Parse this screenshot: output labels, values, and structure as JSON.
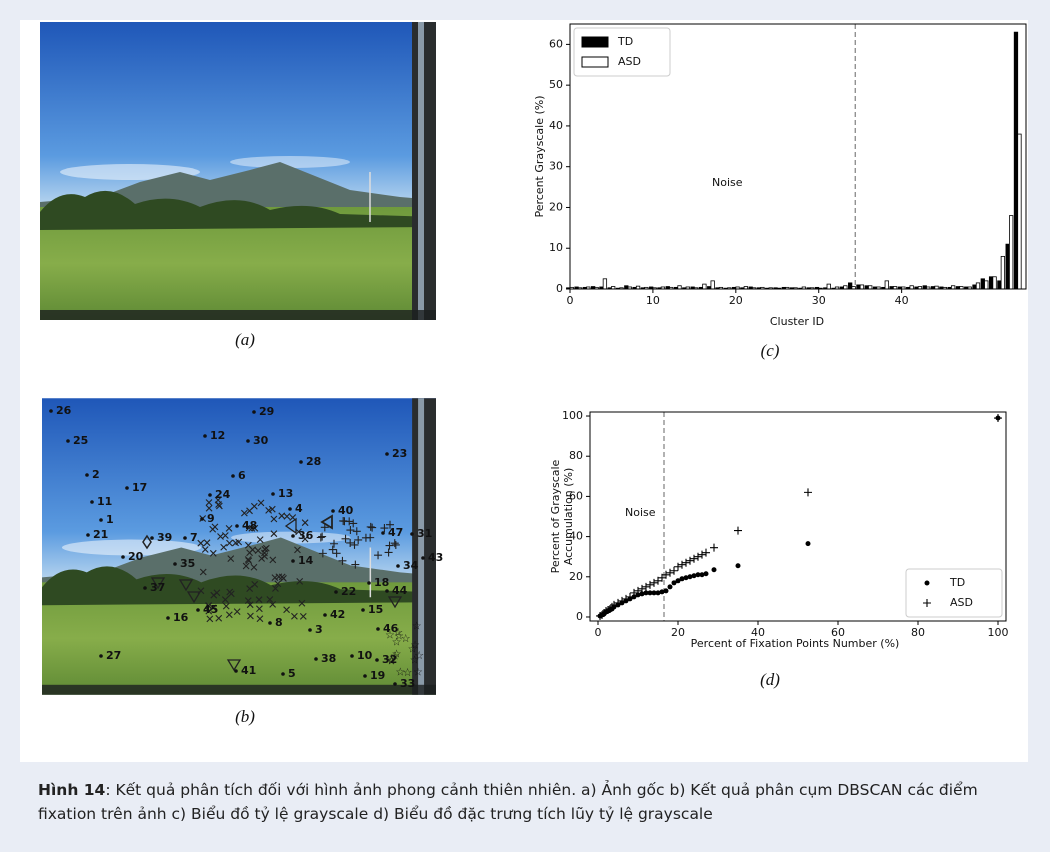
{
  "panel_a": {
    "label": "(a)"
  },
  "panel_b": {
    "label": "(b)",
    "cluster_labels": [
      "26",
      "25",
      "29",
      "12",
      "30",
      "28",
      "23",
      "2",
      "11",
      "17",
      "6",
      "24",
      "13",
      "4",
      "9",
      "40",
      "1",
      "21",
      "48",
      "36",
      "47",
      "31",
      "39",
      "7",
      "20",
      "35",
      "14",
      "43",
      "34",
      "37",
      "18",
      "45",
      "22",
      "44",
      "16",
      "42",
      "15",
      "8",
      "3",
      "46",
      "41",
      "5",
      "38",
      "10",
      "32",
      "27",
      "19",
      "33"
    ]
  },
  "caption": {
    "figure_no": "Hình 14",
    "text": ": Kết quả phân tích đối với hình ảnh phong cảnh thiên nhiên. a) Ảnh gốc b) Kết quả phân cụm DBSCAN các điểm fixation trên ảnh c) Biểu đồ tỷ lệ grayscale d) Biểu đồ đặc trưng tích lũy tỷ lệ grayscale"
  },
  "chart_data": [
    {
      "type": "bar",
      "label": "(c)",
      "xlabel": "Cluster ID",
      "ylabel": "Percent Grayscale (%)",
      "annotation": "Noise",
      "threshold_x": 34.4,
      "x": [
        0,
        1,
        2,
        3,
        4,
        5,
        6,
        7,
        8,
        9,
        10,
        11,
        12,
        13,
        14,
        15,
        16,
        17,
        18,
        19,
        20,
        21,
        22,
        23,
        24,
        25,
        26,
        27,
        28,
        29,
        30,
        31,
        32,
        33,
        34,
        35,
        36,
        37,
        38,
        39,
        40,
        41,
        42,
        43,
        44,
        45,
        46,
        47,
        48,
        49,
        50,
        51,
        52,
        53,
        54
      ],
      "series": [
        {
          "name": "TD",
          "color": "#000000",
          "edgecolor": "#000000",
          "values": [
            0.3,
            0.5,
            0.4,
            0.6,
            0.5,
            0.3,
            0.2,
            0.8,
            0.4,
            0.3,
            0.5,
            0.3,
            0.6,
            0.4,
            0.3,
            0.5,
            0.4,
            0.6,
            0.3,
            0.2,
            0.4,
            0.3,
            0.5,
            0.3,
            0.2,
            0.3,
            0.4,
            0.3,
            0.2,
            0.3,
            0.4,
            0.3,
            0.2,
            0.5,
            1.5,
            1.0,
            0.8,
            0.5,
            0.4,
            0.6,
            0.5,
            0.4,
            0.5,
            0.8,
            0.6,
            0.5,
            0.4,
            0.6,
            0.5,
            1.0,
            2.5,
            3,
            2,
            11,
            63
          ]
        },
        {
          "name": "ASD",
          "color": "#ffffff",
          "edgecolor": "#000000",
          "values": [
            0.4,
            0.3,
            0.5,
            0.4,
            2.5,
            0.6,
            0.3,
            0.5,
            0.7,
            0.4,
            0.3,
            0.5,
            0.4,
            0.8,
            0.5,
            0.3,
            1.2,
            2.0,
            0.4,
            0.3,
            0.5,
            0.6,
            0.3,
            0.4,
            0.3,
            0.2,
            0.4,
            0.3,
            0.5,
            0.3,
            0.2,
            1.2,
            0.5,
            0.8,
            0.6,
            1.0,
            0.8,
            0.5,
            2.0,
            0.6,
            0.5,
            0.8,
            0.6,
            0.5,
            0.7,
            0.4,
            0.8,
            0.6,
            0.5,
            1.5,
            2.0,
            3,
            8,
            18,
            38
          ]
        }
      ],
      "xlim": [
        0,
        55
      ],
      "xticks": [
        0,
        10,
        20,
        30,
        40
      ],
      "ylim": [
        0,
        65
      ],
      "yticks": [
        0,
        10,
        20,
        30,
        40,
        50,
        60
      ],
      "legend": "upper left"
    },
    {
      "type": "scatter",
      "label": "(d)",
      "xlabel": "Percent of Fixation Points Number (%)",
      "ylabel": [
        "Percent of Grayscale",
        "Accumulation (%)"
      ],
      "annotation": "Noise",
      "threshold_x": 16.5,
      "series": [
        {
          "name": "TD",
          "color": "#000000",
          "marker": "circle",
          "x": [
            0.5,
            1,
            1.5,
            2,
            2.5,
            3,
            3.5,
            4,
            5,
            6,
            7,
            8,
            9,
            10,
            11,
            12,
            13,
            14,
            15,
            16,
            17,
            18,
            19,
            20,
            21,
            22,
            23,
            24,
            25,
            26,
            27,
            29,
            35,
            52.5,
            100
          ],
          "values": [
            0.5,
            1,
            1.5,
            2.5,
            3,
            3.5,
            4,
            5,
            6,
            7,
            8,
            9,
            10,
            11,
            11.5,
            12,
            12,
            12,
            12,
            12.5,
            13,
            15,
            17,
            18,
            19,
            19.5,
            20,
            20.5,
            21,
            21,
            21.5,
            23.5,
            25.5,
            36.5,
            99
          ]
        },
        {
          "name": "ASD",
          "color": "#000000",
          "marker": "plus",
          "x": [
            0.5,
            1,
            1.5,
            2,
            2.5,
            3,
            3.5,
            4,
            5,
            6,
            7,
            8,
            9,
            10,
            11,
            12,
            13,
            14,
            15,
            16,
            17,
            18,
            19,
            20,
            21,
            22,
            23,
            24,
            25,
            26,
            27,
            29,
            35,
            52.5,
            100
          ],
          "values": [
            0.5,
            1,
            2,
            3,
            3.5,
            4,
            5,
            6,
            7,
            8,
            9,
            10,
            12,
            13,
            14,
            15,
            16,
            17,
            18,
            19.5,
            21,
            22,
            23,
            25,
            26,
            27,
            28,
            29,
            30,
            31,
            32,
            34.5,
            43,
            62,
            99
          ]
        }
      ],
      "xlim": [
        -2,
        102
      ],
      "xticks": [
        0,
        20,
        40,
        60,
        80,
        100
      ],
      "ylim": [
        -2,
        102
      ],
      "yticks": [
        0,
        20,
        40,
        60,
        80,
        100
      ],
      "legend": "lower right"
    }
  ]
}
